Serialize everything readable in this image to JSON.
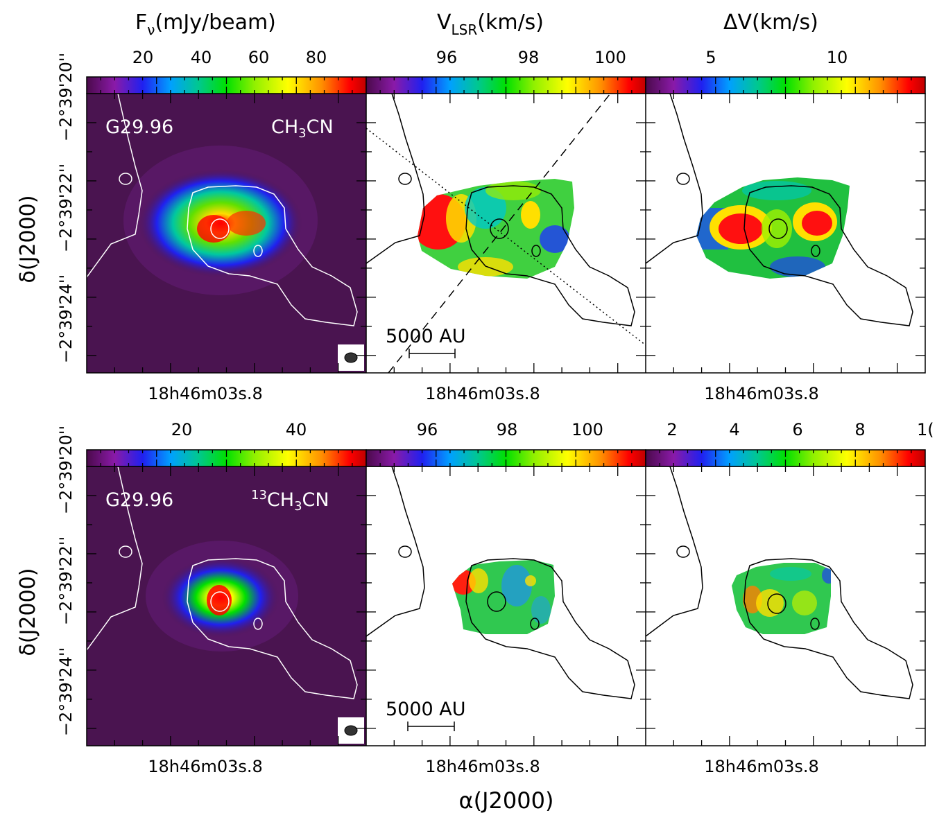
{
  "chart_data": [
    {
      "type": "heatmap",
      "title": "F_ν(mJy/beam)",
      "colorbar_ticks": [
        "20",
        "40",
        "60",
        "80"
      ],
      "source": "G29.96",
      "line": "CH3CN",
      "ylabel": "δ(J2000)",
      "yticks": [
        "−2°39'20''",
        "−2°39'22''",
        "−2°39'24''"
      ],
      "xtick": "18h46m03s.8"
    },
    {
      "type": "heatmap",
      "title": "V_LSR(km/s)",
      "colorbar_ticks": [
        "96",
        "98",
        "100"
      ],
      "scalebar": "5000 AU",
      "xtick": "18h46m03s.8"
    },
    {
      "type": "heatmap",
      "title": "ΔV(km/s)",
      "colorbar_ticks": [
        "5",
        "10"
      ],
      "xtick": "18h46m03s.8"
    },
    {
      "type": "heatmap",
      "colorbar_ticks": [
        "20",
        "40"
      ],
      "source": "G29.96",
      "line": "13CH3CN",
      "ylabel": "δ(J2000)",
      "yticks": [
        "−2°39'20''",
        "−2°39'22''",
        "−2°39'24''"
      ],
      "xtick": "18h46m03s.8"
    },
    {
      "type": "heatmap",
      "colorbar_ticks": [
        "96",
        "98",
        "100"
      ],
      "scalebar": "5000 AU",
      "xtick": "18h46m03s.8"
    },
    {
      "type": "heatmap",
      "colorbar_ticks": [
        "2",
        "4",
        "6",
        "8",
        "1("
      ],
      "xtick": "18h46m03s.8",
      "xlabel": "α(J2000)"
    }
  ],
  "text": {
    "title_flux": "Fν(mJy/beam)",
    "title_vlsr": "VLSR(km/s)",
    "title_dv": "ΔV(km/s)",
    "ylabel": "δ(J2000)",
    "xlabel": "α(J2000)",
    "source": "G29.96",
    "line_top": "CH3CN",
    "line_bottom": "13CH3CN",
    "scalebar": "5000 AU",
    "ytick_1": "−2°39'20''",
    "ytick_2": "−2°39'22''",
    "ytick_3": "−2°39'24''",
    "xtick": "18h46m03s.8",
    "cb1_t1": "20",
    "cb1_t2": "40",
    "cb1_t3": "60",
    "cb1_t4": "80",
    "cb2_t1": "96",
    "cb2_t2": "98",
    "cb2_t3": "100",
    "cb3_t1": "5",
    "cb3_t2": "10",
    "cb4_t1": "20",
    "cb4_t2": "40",
    "cb6_t1": "2",
    "cb6_t2": "4",
    "cb6_t3": "6",
    "cb6_t4": "8",
    "cb6_t5": "1("
  },
  "colors": {
    "colormap": [
      "#4b0a4b",
      "#7a1a9a",
      "#2a2af0",
      "#00a0ff",
      "#00d080",
      "#00e000",
      "#a0f000",
      "#ffff00",
      "#ff9000",
      "#ff0000",
      "#c00000"
    ],
    "background_flux": "#4a1450",
    "contour_on_image": "#ffffff",
    "contour_on_white": "#000000"
  }
}
